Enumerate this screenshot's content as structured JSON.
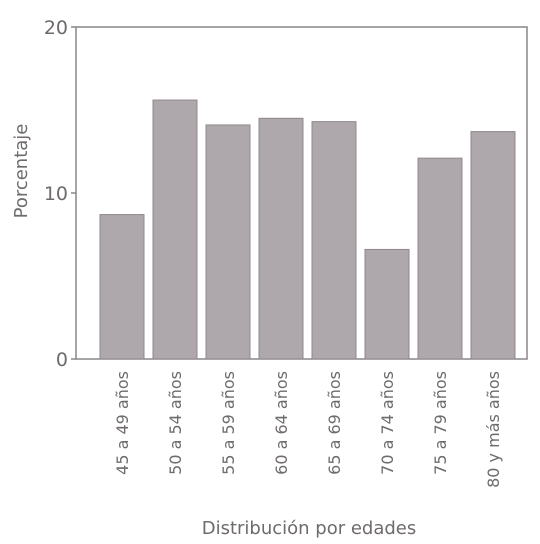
{
  "chart_data": {
    "type": "bar",
    "categories": [
      "45 a 49 años",
      "50 a 54 años",
      "55 a 59 años",
      "60 a 64 años",
      "65 a 69 años",
      "70 a 74 años",
      "75 a 79 años",
      "80 y más años"
    ],
    "values": [
      8.7,
      15.6,
      14.1,
      14.5,
      14.3,
      6.6,
      12.1,
      13.7
    ],
    "title": "",
    "xlabel": "Distribución por edades",
    "ylabel": "Porcentaje",
    "ylim": [
      0,
      20
    ],
    "yticks": [
      "0",
      "10",
      "20"
    ],
    "grid": false,
    "colors": {
      "bar_fill": "#aea8ac",
      "bar_stroke": "#8e888c",
      "axis": "#8a858a",
      "text": "#6e6a6e"
    }
  }
}
